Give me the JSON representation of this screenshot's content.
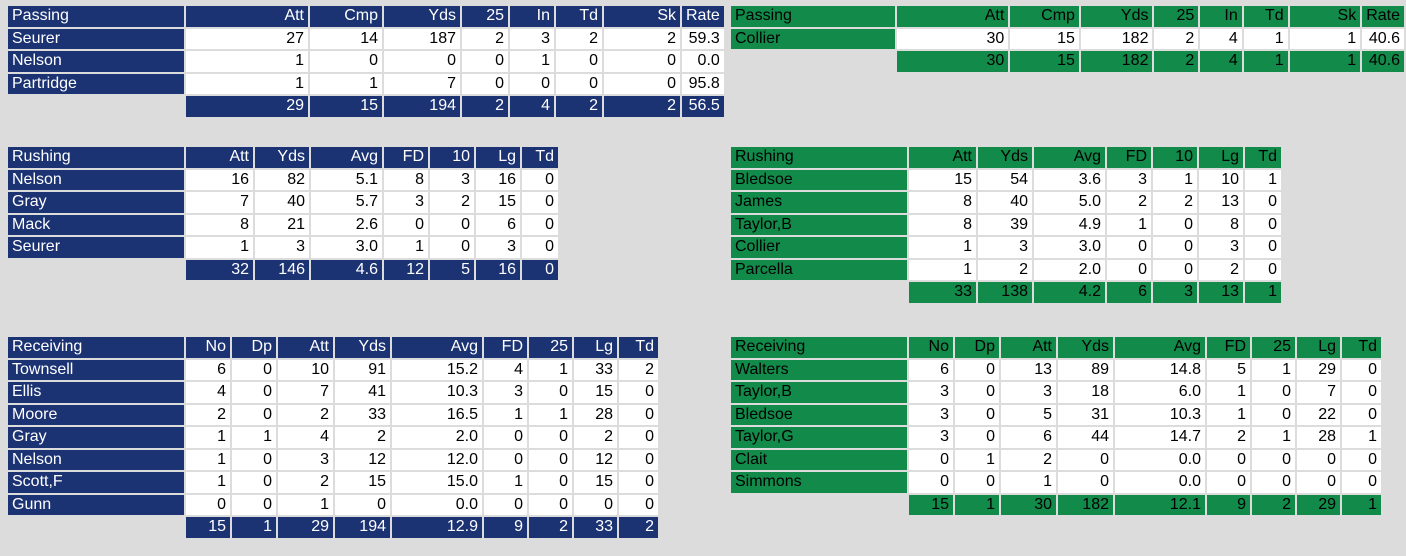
{
  "colors": {
    "home_team": "#1c3373",
    "away_team": "#128a4a",
    "background": "#dcdcdc"
  },
  "home": {
    "passing": {
      "title": "Passing",
      "columns": [
        "Att",
        "Cmp",
        "Yds",
        "25",
        "In",
        "Td",
        "Sk",
        "Rate"
      ],
      "rows": [
        {
          "name": "Seurer",
          "values": [
            "27",
            "14",
            "187",
            "2",
            "3",
            "2",
            "2",
            "59.3"
          ]
        },
        {
          "name": "Nelson",
          "values": [
            "1",
            "0",
            "0",
            "0",
            "1",
            "0",
            "0",
            "0.0"
          ]
        },
        {
          "name": "Partridge",
          "values": [
            "1",
            "1",
            "7",
            "0",
            "0",
            "0",
            "0",
            "95.8"
          ]
        }
      ],
      "totals": [
        "29",
        "15",
        "194",
        "2",
        "4",
        "2",
        "2",
        "56.5"
      ]
    },
    "rushing": {
      "title": "Rushing",
      "columns": [
        "Att",
        "Yds",
        "Avg",
        "FD",
        "10",
        "Lg",
        "Td"
      ],
      "rows": [
        {
          "name": "Nelson",
          "values": [
            "16",
            "82",
            "5.1",
            "8",
            "3",
            "16",
            "0"
          ]
        },
        {
          "name": "Gray",
          "values": [
            "7",
            "40",
            "5.7",
            "3",
            "2",
            "15",
            "0"
          ]
        },
        {
          "name": "Mack",
          "values": [
            "8",
            "21",
            "2.6",
            "0",
            "0",
            "6",
            "0"
          ]
        },
        {
          "name": "Seurer",
          "values": [
            "1",
            "3",
            "3.0",
            "1",
            "0",
            "3",
            "0"
          ]
        }
      ],
      "totals": [
        "32",
        "146",
        "4.6",
        "12",
        "5",
        "16",
        "0"
      ]
    },
    "receiving": {
      "title": "Receiving",
      "columns": [
        "No",
        "Dp",
        "Att",
        "Yds",
        "Avg",
        "FD",
        "25",
        "Lg",
        "Td"
      ],
      "rows": [
        {
          "name": "Townsell",
          "values": [
            "6",
            "0",
            "10",
            "91",
            "15.2",
            "4",
            "1",
            "33",
            "2"
          ]
        },
        {
          "name": "Ellis",
          "values": [
            "4",
            "0",
            "7",
            "41",
            "10.3",
            "3",
            "0",
            "15",
            "0"
          ]
        },
        {
          "name": "Moore",
          "values": [
            "2",
            "0",
            "2",
            "33",
            "16.5",
            "1",
            "1",
            "28",
            "0"
          ]
        },
        {
          "name": "Gray",
          "values": [
            "1",
            "1",
            "4",
            "2",
            "2.0",
            "0",
            "0",
            "2",
            "0"
          ]
        },
        {
          "name": "Nelson",
          "values": [
            "1",
            "0",
            "3",
            "12",
            "12.0",
            "0",
            "0",
            "12",
            "0"
          ]
        },
        {
          "name": "Scott,F",
          "values": [
            "1",
            "0",
            "2",
            "15",
            "15.0",
            "1",
            "0",
            "15",
            "0"
          ]
        },
        {
          "name": "Gunn",
          "values": [
            "0",
            "0",
            "1",
            "0",
            "0.0",
            "0",
            "0",
            "0",
            "0"
          ]
        }
      ],
      "totals": [
        "15",
        "1",
        "29",
        "194",
        "12.9",
        "9",
        "2",
        "33",
        "2"
      ]
    }
  },
  "away": {
    "passing": {
      "title": "Passing",
      "columns": [
        "Att",
        "Cmp",
        "Yds",
        "25",
        "In",
        "Td",
        "Sk",
        "Rate"
      ],
      "rows": [
        {
          "name": "Collier",
          "values": [
            "30",
            "15",
            "182",
            "2",
            "4",
            "1",
            "1",
            "40.6"
          ]
        }
      ],
      "totals": [
        "30",
        "15",
        "182",
        "2",
        "4",
        "1",
        "1",
        "40.6"
      ]
    },
    "rushing": {
      "title": "Rushing",
      "columns": [
        "Att",
        "Yds",
        "Avg",
        "FD",
        "10",
        "Lg",
        "Td"
      ],
      "rows": [
        {
          "name": "Bledsoe",
          "values": [
            "15",
            "54",
            "3.6",
            "3",
            "1",
            "10",
            "1"
          ]
        },
        {
          "name": "James",
          "values": [
            "8",
            "40",
            "5.0",
            "2",
            "2",
            "13",
            "0"
          ]
        },
        {
          "name": "Taylor,B",
          "values": [
            "8",
            "39",
            "4.9",
            "1",
            "0",
            "8",
            "0"
          ]
        },
        {
          "name": "Collier",
          "values": [
            "1",
            "3",
            "3.0",
            "0",
            "0",
            "3",
            "0"
          ]
        },
        {
          "name": "Parcella",
          "values": [
            "1",
            "2",
            "2.0",
            "0",
            "0",
            "2",
            "0"
          ]
        }
      ],
      "totals": [
        "33",
        "138",
        "4.2",
        "6",
        "3",
        "13",
        "1"
      ]
    },
    "receiving": {
      "title": "Receiving",
      "columns": [
        "No",
        "Dp",
        "Att",
        "Yds",
        "Avg",
        "FD",
        "25",
        "Lg",
        "Td"
      ],
      "rows": [
        {
          "name": "Walters",
          "values": [
            "6",
            "0",
            "13",
            "89",
            "14.8",
            "5",
            "1",
            "29",
            "0"
          ]
        },
        {
          "name": "Taylor,B",
          "values": [
            "3",
            "0",
            "3",
            "18",
            "6.0",
            "1",
            "0",
            "7",
            "0"
          ]
        },
        {
          "name": "Bledsoe",
          "values": [
            "3",
            "0",
            "5",
            "31",
            "10.3",
            "1",
            "0",
            "22",
            "0"
          ]
        },
        {
          "name": "Taylor,G",
          "values": [
            "3",
            "0",
            "6",
            "44",
            "14.7",
            "2",
            "1",
            "28",
            "1"
          ]
        },
        {
          "name": "Clait",
          "values": [
            "0",
            "1",
            "2",
            "0",
            "0.0",
            "0",
            "0",
            "0",
            "0"
          ]
        },
        {
          "name": "Simmons",
          "values": [
            "0",
            "0",
            "1",
            "0",
            "0.0",
            "0",
            "0",
            "0",
            "0"
          ]
        }
      ],
      "totals": [
        "15",
        "1",
        "30",
        "182",
        "12.1",
        "9",
        "2",
        "29",
        "1"
      ]
    }
  }
}
